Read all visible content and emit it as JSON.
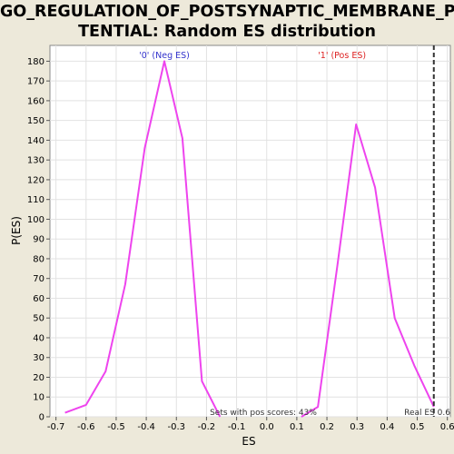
{
  "chart_data": {
    "type": "line",
    "title_lines": [
      "GO_REGULATION_OF_POSTSYNAPTIC_MEMBRANE_PO",
      "TENTIAL: Random ES distribution"
    ],
    "xlabel": "ES",
    "ylabel": "P(ES)",
    "xlim": [
      -0.72,
      0.61
    ],
    "ylim": [
      0,
      188
    ],
    "x_ticks": [
      -0.7,
      -0.6,
      -0.5,
      -0.4,
      -0.3,
      -0.2,
      -0.1,
      0.0,
      0.1,
      0.2,
      0.3,
      0.4,
      0.5,
      0.6
    ],
    "x_tick_labels": [
      "-0.7",
      "-0.6",
      "-0.5",
      "-0.4",
      "-0.3",
      "-0.2",
      "-0.1",
      "0.0",
      "0.1",
      "0.2",
      "0.3",
      "0.4",
      "0.5",
      "0.6"
    ],
    "y_ticks": [
      0,
      10,
      20,
      30,
      40,
      50,
      60,
      70,
      80,
      90,
      100,
      110,
      120,
      130,
      140,
      150,
      160,
      170,
      180
    ],
    "y_tick_labels": [
      "0",
      "10",
      "20",
      "30",
      "40",
      "50",
      "60",
      "70",
      "80",
      "90",
      "100",
      "110",
      "120",
      "130",
      "140",
      "150",
      "160",
      "170",
      "180"
    ],
    "grid": true,
    "line_color": "#ee44ee",
    "series": [
      {
        "x": [
          -0.67,
          -0.6,
          -0.535,
          -0.47,
          -0.405,
          -0.34,
          -0.28,
          -0.215,
          -0.155
        ],
        "y": [
          2,
          6,
          23,
          67,
          136,
          180,
          141,
          18,
          0
        ]
      },
      {
        "x": [
          0.115,
          0.17,
          0.235,
          0.297,
          0.36,
          0.425,
          0.49,
          0.555
        ],
        "y": [
          0,
          5,
          77,
          148,
          116,
          50,
          26,
          5
        ]
      }
    ],
    "legend": [
      {
        "label": "'0' (Neg ES)",
        "color": "#3333cc",
        "x_position": -0.34
      },
      {
        "label": "'1' (Pos ES)",
        "color": "#dd2222",
        "x_position": 0.25
      }
    ],
    "real_es": 0.555,
    "real_es_label": "Real ES 0.6",
    "pos_scores_label": "Sets with pos scores: 43%"
  }
}
